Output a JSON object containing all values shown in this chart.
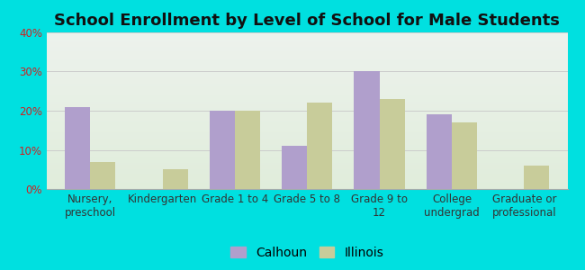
{
  "title": "School Enrollment by Level of School for Male Students",
  "categories": [
    "Nursery,\npreschool",
    "Kindergarten",
    "Grade 1 to 4",
    "Grade 5 to 8",
    "Grade 9 to\n12",
    "College\nundergrad",
    "Graduate or\nprofessional"
  ],
  "calhoun": [
    21,
    0,
    20,
    11,
    30,
    19,
    0
  ],
  "illinois": [
    7,
    5,
    20,
    22,
    23,
    17,
    6
  ],
  "calhoun_color": "#b09fcc",
  "illinois_color": "#c8cc9a",
  "background_color": "#00e0e0",
  "title_color": "#111111",
  "tick_color": "#cc2222",
  "ylim": [
    0,
    40
  ],
  "yticks": [
    0,
    10,
    20,
    30,
    40
  ],
  "bar_width": 0.35,
  "legend_labels": [
    "Calhoun",
    "Illinois"
  ],
  "title_fontsize": 13,
  "axis_fontsize": 8.5,
  "legend_fontsize": 10,
  "grid_color": "#cccccc",
  "plot_bg_color_top": "#e8ece8",
  "plot_bg_color_bottom": "#f0f5ee"
}
